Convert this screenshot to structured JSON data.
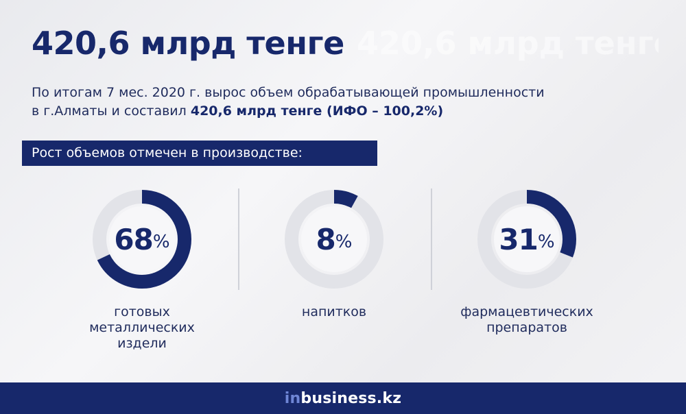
{
  "headline": "420,6 млрд тенге",
  "description": {
    "line1": "По итогам 7 мес. 2020 г. вырос объем обрабатывающей промышленности",
    "line2_prefix": "в г.Алматы и составил ",
    "line2_bold": "420,6 млрд тенге (ИФО – 100,2%)"
  },
  "banner": "Рост объемов отмечен в  производстве:",
  "items": [
    {
      "value": "68",
      "unit": "%",
      "percent": 68,
      "caption": [
        "готовых",
        "металлических",
        "издели"
      ]
    },
    {
      "value": "8",
      "unit": "%",
      "percent": 8,
      "caption": [
        "напитков",
        ""
      ]
    },
    {
      "value": "31",
      "unit": "%",
      "percent": 31,
      "caption": [
        "фармацевтических",
        "препаратов"
      ]
    }
  ],
  "footer": {
    "brand_prefix": "in",
    "brand_rest": "business.kz"
  },
  "colors": {
    "accent": "#17286b",
    "ring_bg": "#e4e5e9",
    "background": "#eeeff2"
  }
}
